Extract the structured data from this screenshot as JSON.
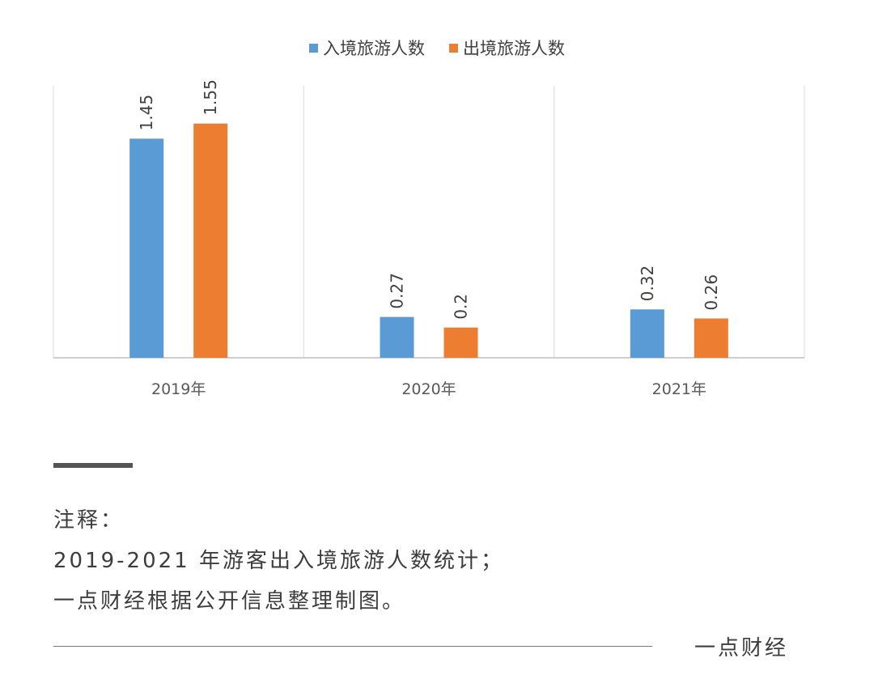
{
  "chart_data": {
    "type": "bar",
    "categories": [
      "2019年",
      "2020年",
      "2021年"
    ],
    "series": [
      {
        "name": "入境旅游人数",
        "color": "#5B9BD5",
        "values": [
          1.45,
          0.27,
          0.32
        ],
        "labels": [
          "1.45",
          "0.27",
          "0.32"
        ]
      },
      {
        "name": "出境旅游人数",
        "color": "#ED7D31",
        "values": [
          1.55,
          0.2,
          0.26
        ],
        "labels": [
          "1.55",
          "0.2",
          "0.26"
        ]
      }
    ],
    "ylim": [
      0,
      1.8
    ],
    "legend_position": "top-center",
    "grid": "vertical category separators"
  },
  "notes": {
    "heading": "注释：",
    "lines": [
      "2019-2021 年游客出入境旅游人数统计；",
      "一点财经根据公开信息整理制图。"
    ]
  },
  "signature": "一点财经"
}
